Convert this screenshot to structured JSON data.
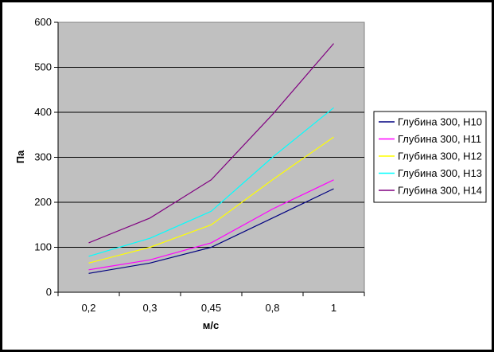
{
  "chart_data": {
    "type": "line",
    "xlabel": "м/с",
    "ylabel": "Па",
    "categories": [
      "0,2",
      "0,3",
      "0,45",
      "0,8",
      "1"
    ],
    "ylim": [
      0,
      600
    ],
    "yticks": [
      "0",
      "100",
      "200",
      "300",
      "400",
      "500",
      "600"
    ],
    "grid": true,
    "legend_position": "right",
    "plot_background": "#c0c0c0",
    "series": [
      {
        "name": "Глубина 300, Н10",
        "color": "#000080",
        "values": [
          42,
          65,
          100,
          165,
          230
        ]
      },
      {
        "name": "Глубина 300, Н11",
        "color": "#ff00ff",
        "values": [
          50,
          72,
          110,
          185,
          250
        ]
      },
      {
        "name": "Глубина 300, Н12",
        "color": "#ffff00",
        "values": [
          65,
          100,
          150,
          250,
          345
        ]
      },
      {
        "name": "Глубина 300, Н13",
        "color": "#00ffff",
        "values": [
          80,
          120,
          180,
          300,
          410
        ]
      },
      {
        "name": "Глубина 300, Н14",
        "color": "#800080",
        "values": [
          110,
          165,
          250,
          395,
          553
        ]
      }
    ]
  }
}
